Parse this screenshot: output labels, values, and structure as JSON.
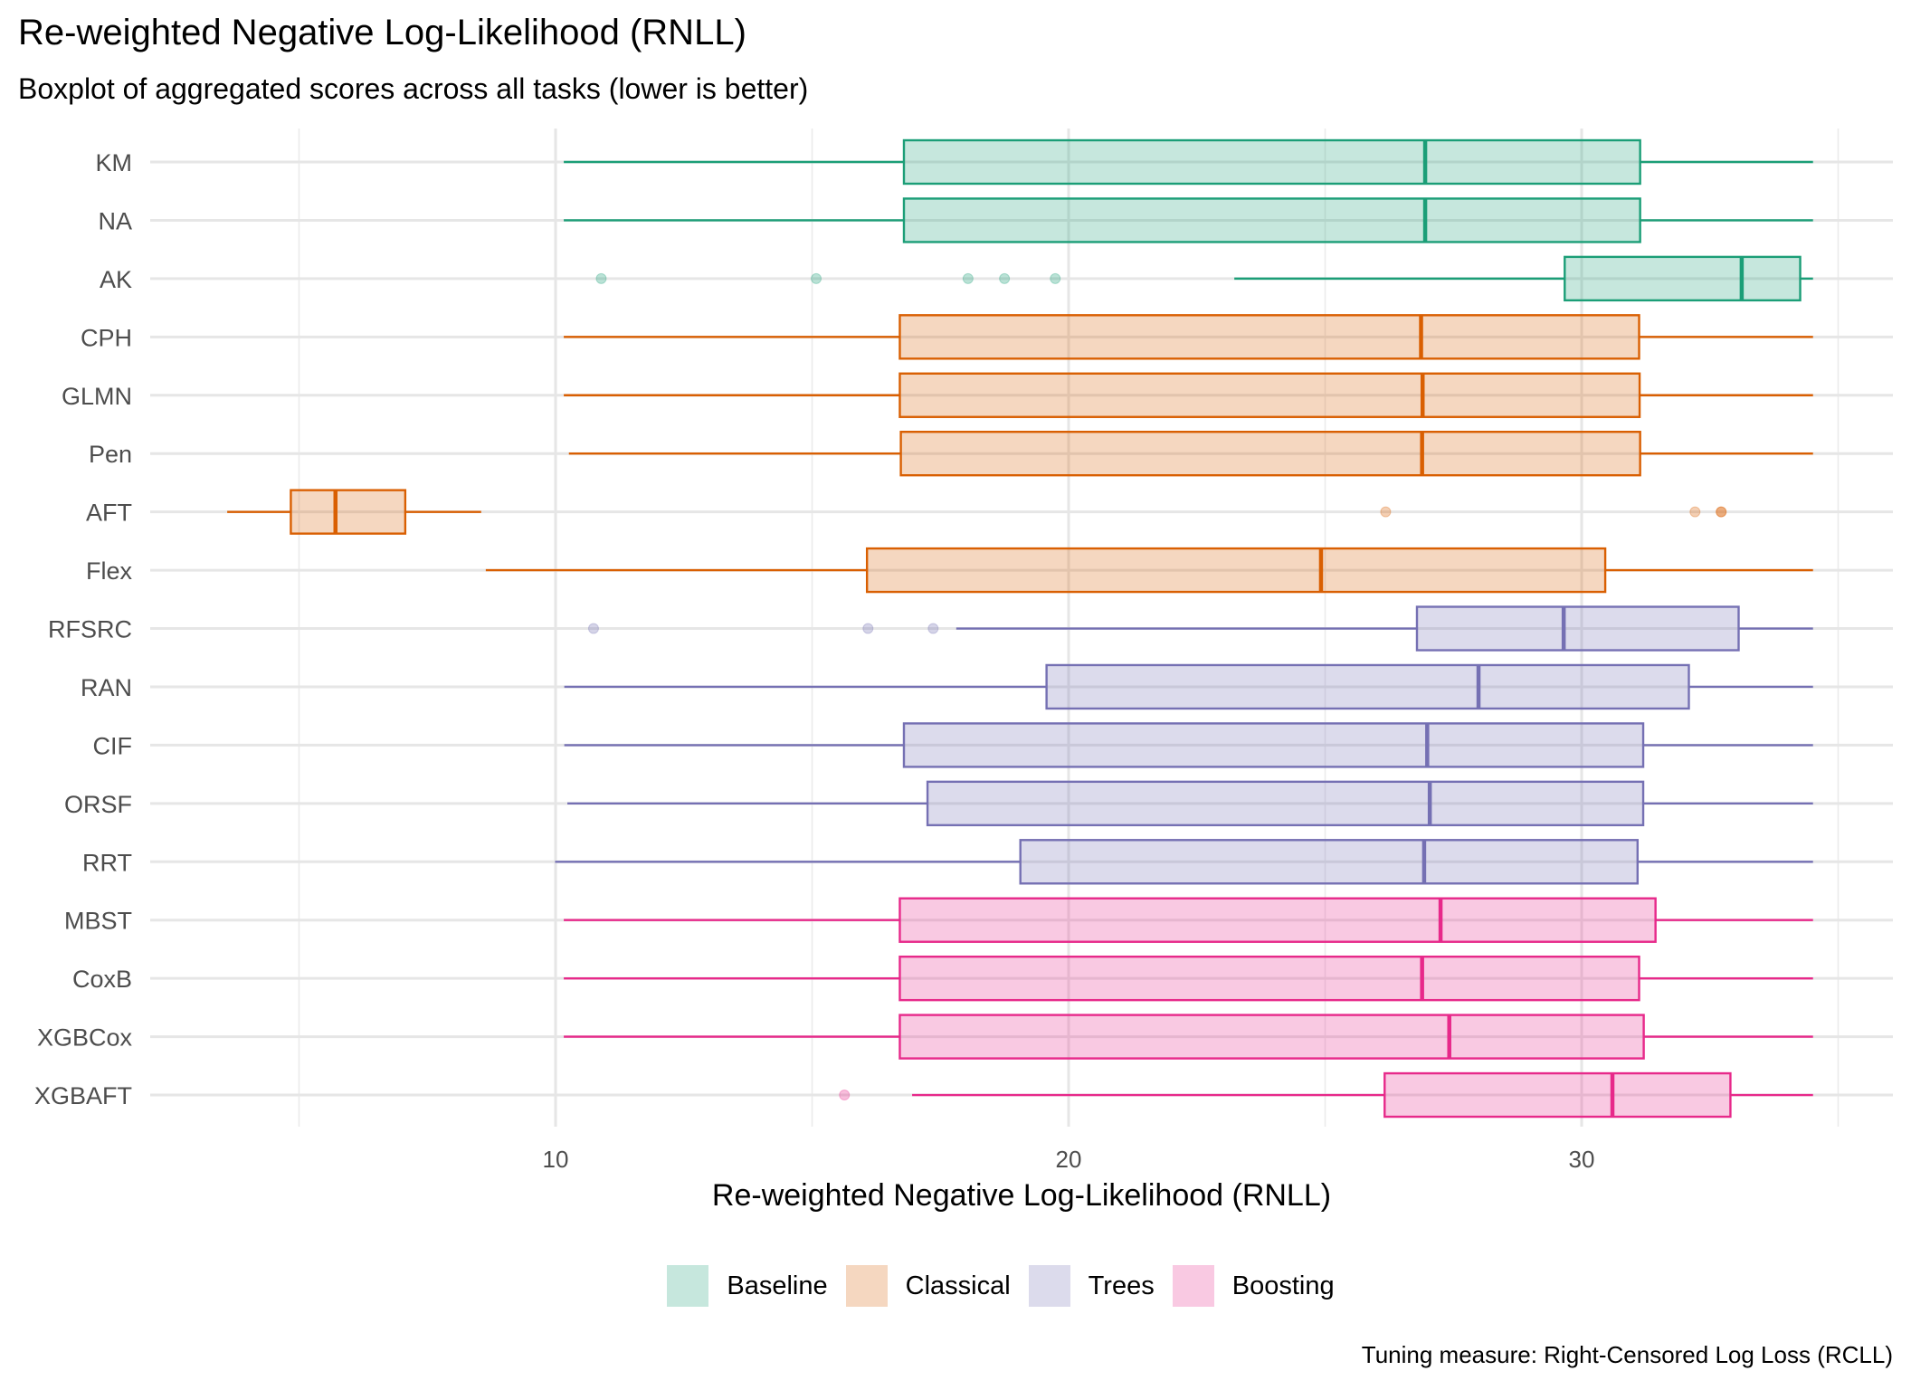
{
  "title": "Re-weighted Negative Log-Likelihood (RNLL)",
  "subtitle": "Boxplot of aggregated scores across all tasks (lower is better)",
  "caption": "Tuning measure: Right-Censored Log Loss (RCLL)",
  "legend": {
    "position": "bottom",
    "items": [
      {
        "label": "Baseline",
        "color": "#1B9E77"
      },
      {
        "label": "Classical",
        "color": "#D95F02"
      },
      {
        "label": "Trees",
        "color": "#7570B3"
      },
      {
        "label": "Boosting",
        "color": "#E7298A"
      }
    ]
  },
  "chart_data": {
    "type": "boxplot",
    "orientation": "horizontal",
    "title": "Re-weighted Negative Log-Likelihood (RNLL)",
    "subtitle": "Boxplot of aggregated scores across all tasks (lower is better)",
    "xlabel": "Re-weighted Negative Log-Likelihood (RNLL)",
    "ylabel": "",
    "xlim": [
      1.2,
      36.3
    ],
    "xticks": [
      10,
      20,
      30
    ],
    "xtick_labels": [
      "10",
      "20",
      "30"
    ],
    "grid": true,
    "fill_alpha": 0.25,
    "categories": [
      "KM",
      "NA",
      "AK",
      "CPH",
      "GLMN",
      "Pen",
      "AFT",
      "Flex",
      "RFSRC",
      "RAN",
      "CIF",
      "ORSF",
      "RRT",
      "MBST",
      "CoxB",
      "XGBCox",
      "XGBAFT"
    ],
    "series": [
      {
        "name": "KM",
        "group": "Baseline",
        "whisker_low": 10.16,
        "q1": 16.79,
        "median": 26.95,
        "q3": 31.14,
        "whisker_high": 34.51,
        "outliers": []
      },
      {
        "name": "NA",
        "group": "Baseline",
        "whisker_low": 10.16,
        "q1": 16.79,
        "median": 26.95,
        "q3": 31.14,
        "whisker_high": 34.51,
        "outliers": []
      },
      {
        "name": "AK",
        "group": "Baseline",
        "whisker_low": 23.23,
        "q1": 29.67,
        "median": 33.12,
        "q3": 34.26,
        "whisker_high": 34.51,
        "outliers": [
          10.89,
          15.08,
          18.04,
          18.75,
          19.74
        ]
      },
      {
        "name": "CPH",
        "group": "Classical",
        "whisker_low": 10.16,
        "q1": 16.71,
        "median": 26.87,
        "q3": 31.12,
        "whisker_high": 34.51,
        "outliers": []
      },
      {
        "name": "GLMN",
        "group": "Classical",
        "whisker_low": 10.16,
        "q1": 16.71,
        "median": 26.9,
        "q3": 31.13,
        "whisker_high": 34.51,
        "outliers": []
      },
      {
        "name": "Pen",
        "group": "Classical",
        "whisker_low": 10.26,
        "q1": 16.73,
        "median": 26.89,
        "q3": 31.14,
        "whisker_high": 34.51,
        "outliers": []
      },
      {
        "name": "AFT",
        "group": "Classical",
        "whisker_low": 3.6,
        "q1": 4.84,
        "median": 5.71,
        "q3": 7.07,
        "whisker_high": 8.55,
        "outliers": [
          26.18,
          32.21,
          32.72,
          32.72
        ]
      },
      {
        "name": "Flex",
        "group": "Classical",
        "whisker_low": 8.64,
        "q1": 16.07,
        "median": 24.92,
        "q3": 30.46,
        "whisker_high": 34.51,
        "outliers": []
      },
      {
        "name": "RFSRC",
        "group": "Trees",
        "whisker_low": 17.81,
        "q1": 26.79,
        "median": 29.65,
        "q3": 33.06,
        "whisker_high": 34.51,
        "outliers": [
          10.74,
          16.09,
          17.36
        ]
      },
      {
        "name": "RAN",
        "group": "Trees",
        "whisker_low": 10.17,
        "q1": 19.57,
        "median": 27.99,
        "q3": 32.09,
        "whisker_high": 34.51,
        "outliers": []
      },
      {
        "name": "CIF",
        "group": "Trees",
        "whisker_low": 10.17,
        "q1": 16.79,
        "median": 26.99,
        "q3": 31.2,
        "whisker_high": 34.51,
        "outliers": []
      },
      {
        "name": "ORSF",
        "group": "Trees",
        "whisker_low": 10.23,
        "q1": 17.25,
        "median": 27.04,
        "q3": 31.2,
        "whisker_high": 34.51,
        "outliers": []
      },
      {
        "name": "RRT",
        "group": "Trees",
        "whisker_low": 9.99,
        "q1": 19.06,
        "median": 26.93,
        "q3": 31.09,
        "whisker_high": 34.51,
        "outliers": []
      },
      {
        "name": "MBST",
        "group": "Boosting",
        "whisker_low": 10.16,
        "q1": 16.71,
        "median": 27.25,
        "q3": 31.44,
        "whisker_high": 34.51,
        "outliers": []
      },
      {
        "name": "CoxB",
        "group": "Boosting",
        "whisker_low": 10.16,
        "q1": 16.71,
        "median": 26.89,
        "q3": 31.12,
        "whisker_high": 34.51,
        "outliers": []
      },
      {
        "name": "XGBCox",
        "group": "Boosting",
        "whisker_low": 10.16,
        "q1": 16.71,
        "median": 27.42,
        "q3": 31.21,
        "whisker_high": 34.51,
        "outliers": []
      },
      {
        "name": "XGBAFT",
        "group": "Boosting",
        "whisker_low": 16.95,
        "q1": 26.16,
        "median": 30.6,
        "q3": 32.9,
        "whisker_high": 34.51,
        "outliers": [
          15.63
        ]
      }
    ]
  }
}
